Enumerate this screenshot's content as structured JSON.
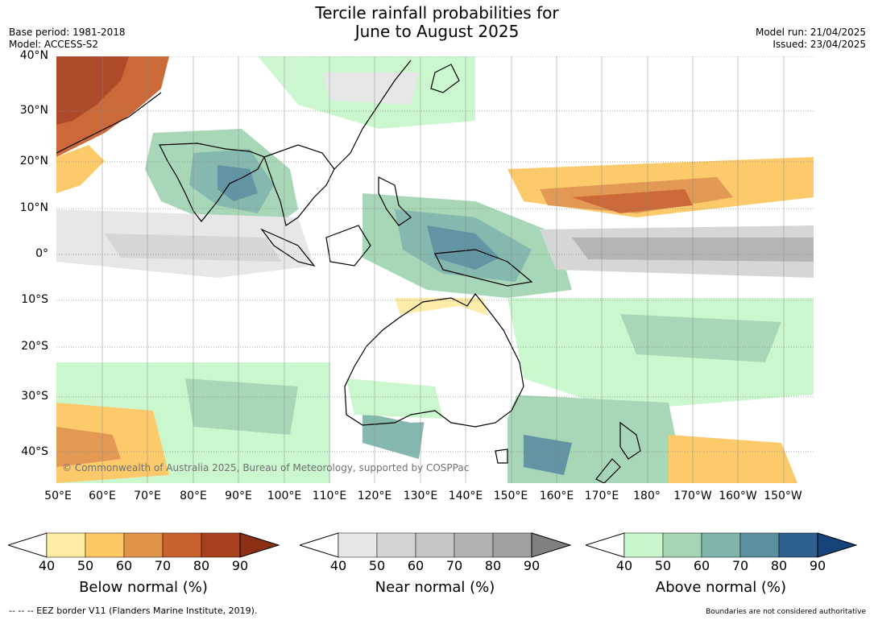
{
  "title": {
    "line1": "Tercile rainfall probabilities for",
    "line2": "June to August 2025"
  },
  "meta": {
    "base_period": "Base period: 1981-2018",
    "model": "Model: ACCESS-S2",
    "model_run": "Model run: 21/04/2025",
    "issued": "Issued: 23/04/2025"
  },
  "latitude_labels": [
    "40°N",
    "30°N",
    "20°N",
    "10°N",
    "0°",
    "10°S",
    "20°S",
    "30°S",
    "40°S"
  ],
  "longitude_labels": [
    "50°E",
    "60°E",
    "70°E",
    "80°E",
    "90°E",
    "100°E",
    "110°E",
    "120°E",
    "130°E",
    "140°E",
    "150°E",
    "160°E",
    "170°E",
    "180°",
    "170°W",
    "160°W",
    "150°W"
  ],
  "copyright": "© Commonwealth of Australia 2025, Bureau of Meteorology, supported by COSPPac",
  "colorbars": [
    {
      "label": "Below normal (%)",
      "ticks": [
        "40",
        "50",
        "60",
        "70",
        "80",
        "90"
      ],
      "colors": [
        "#fdeca4",
        "#fcc864",
        "#e0944a",
        "#c9622f",
        "#a9411f"
      ],
      "arrow_color": "#8c3015"
    },
    {
      "label": "Near normal (%)",
      "ticks": [
        "40",
        "50",
        "60",
        "70",
        "80",
        "90"
      ],
      "colors": [
        "#e6e6e6",
        "#d4d4d4",
        "#c6c6c6",
        "#b2b2b2",
        "#a0a0a0"
      ],
      "arrow_color": "#808080"
    },
    {
      "label": "Above normal (%)",
      "ticks": [
        "40",
        "50",
        "60",
        "70",
        "80",
        "90"
      ],
      "colors": [
        "#c9f7cd",
        "#a4d5b4",
        "#7fb5aa",
        "#5a8f9f",
        "#2d5f8f"
      ],
      "arrow_color": "#15437a"
    }
  ],
  "footer": {
    "eez_note": "--  --  -- EEZ border V11 (Flanders Marine Institute, 2019).",
    "boundaries_note": "Boundaries are not considered authoritative"
  },
  "map_colors": {
    "ocean_base": "#ffffff",
    "land_outline": "#000000",
    "country_border": "#888888",
    "gridline": "#888888"
  }
}
